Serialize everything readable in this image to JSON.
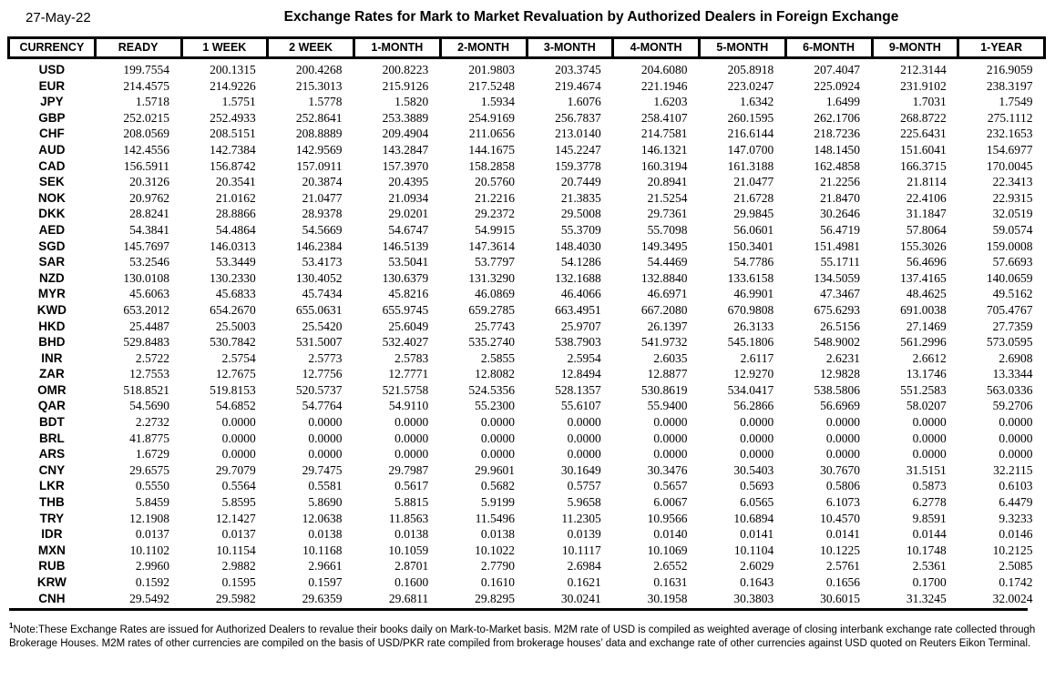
{
  "header": {
    "date": "27-May-22",
    "title": "Exchange Rates for Mark to Market Revaluation by Authorized Dealers in Foreign Exchange"
  },
  "table": {
    "columns": [
      "CURRENCY",
      "READY",
      "1 WEEK",
      "2 WEEK",
      "1-MONTH",
      "2-MONTH",
      "3-MONTH",
      "4-MONTH",
      "5-MONTH",
      "6-MONTH",
      "9-MONTH",
      "1-YEAR"
    ],
    "rows": [
      {
        "currency": "USD",
        "rates": [
          "199.7554",
          "200.1315",
          "200.4268",
          "200.8223",
          "201.9803",
          "203.3745",
          "204.6080",
          "205.8918",
          "207.4047",
          "212.3144",
          "216.9059"
        ]
      },
      {
        "currency": "EUR",
        "rates": [
          "214.4575",
          "214.9226",
          "215.3013",
          "215.9126",
          "217.5248",
          "219.4674",
          "221.1946",
          "223.0247",
          "225.0924",
          "231.9102",
          "238.3197"
        ]
      },
      {
        "currency": "JPY",
        "rates": [
          "1.5718",
          "1.5751",
          "1.5778",
          "1.5820",
          "1.5934",
          "1.6076",
          "1.6203",
          "1.6342",
          "1.6499",
          "1.7031",
          "1.7549"
        ]
      },
      {
        "currency": "GBP",
        "rates": [
          "252.0215",
          "252.4933",
          "252.8641",
          "253.3889",
          "254.9169",
          "256.7837",
          "258.4107",
          "260.1595",
          "262.1706",
          "268.8722",
          "275.1112"
        ]
      },
      {
        "currency": "CHF",
        "rates": [
          "208.0569",
          "208.5151",
          "208.8889",
          "209.4904",
          "211.0656",
          "213.0140",
          "214.7581",
          "216.6144",
          "218.7236",
          "225.6431",
          "232.1653"
        ]
      },
      {
        "currency": "AUD",
        "rates": [
          "142.4556",
          "142.7384",
          "142.9569",
          "143.2847",
          "144.1675",
          "145.2247",
          "146.1321",
          "147.0700",
          "148.1450",
          "151.6041",
          "154.6977"
        ]
      },
      {
        "currency": "CAD",
        "rates": [
          "156.5911",
          "156.8742",
          "157.0911",
          "157.3970",
          "158.2858",
          "159.3778",
          "160.3194",
          "161.3188",
          "162.4858",
          "166.3715",
          "170.0045"
        ]
      },
      {
        "currency": "SEK",
        "rates": [
          "20.3126",
          "20.3541",
          "20.3874",
          "20.4395",
          "20.5760",
          "20.7449",
          "20.8941",
          "21.0477",
          "21.2256",
          "21.8114",
          "22.3413"
        ]
      },
      {
        "currency": "NOK",
        "rates": [
          "20.9762",
          "21.0162",
          "21.0477",
          "21.0934",
          "21.2216",
          "21.3835",
          "21.5254",
          "21.6728",
          "21.8470",
          "22.4106",
          "22.9315"
        ]
      },
      {
        "currency": "DKK",
        "rates": [
          "28.8241",
          "28.8866",
          "28.9378",
          "29.0201",
          "29.2372",
          "29.5008",
          "29.7361",
          "29.9845",
          "30.2646",
          "31.1847",
          "32.0519"
        ]
      },
      {
        "currency": "AED",
        "rates": [
          "54.3841",
          "54.4864",
          "54.5669",
          "54.6747",
          "54.9915",
          "55.3709",
          "55.7098",
          "56.0601",
          "56.4719",
          "57.8064",
          "59.0574"
        ]
      },
      {
        "currency": "SGD",
        "rates": [
          "145.7697",
          "146.0313",
          "146.2384",
          "146.5139",
          "147.3614",
          "148.4030",
          "149.3495",
          "150.3401",
          "151.4981",
          "155.3026",
          "159.0008"
        ]
      },
      {
        "currency": "SAR",
        "rates": [
          "53.2546",
          "53.3449",
          "53.4173",
          "53.5041",
          "53.7797",
          "54.1286",
          "54.4469",
          "54.7786",
          "55.1711",
          "56.4696",
          "57.6693"
        ]
      },
      {
        "currency": "NZD",
        "rates": [
          "130.0108",
          "130.2330",
          "130.4052",
          "130.6379",
          "131.3290",
          "132.1688",
          "132.8840",
          "133.6158",
          "134.5059",
          "137.4165",
          "140.0659"
        ]
      },
      {
        "currency": "MYR",
        "rates": [
          "45.6063",
          "45.6833",
          "45.7434",
          "45.8216",
          "46.0869",
          "46.4066",
          "46.6971",
          "46.9901",
          "47.3467",
          "48.4625",
          "49.5162"
        ]
      },
      {
        "currency": "KWD",
        "rates": [
          "653.2012",
          "654.2670",
          "655.0631",
          "655.9745",
          "659.2785",
          "663.4951",
          "667.2080",
          "670.9808",
          "675.6293",
          "691.0038",
          "705.4767"
        ]
      },
      {
        "currency": "HKD",
        "rates": [
          "25.4487",
          "25.5003",
          "25.5420",
          "25.6049",
          "25.7743",
          "25.9707",
          "26.1397",
          "26.3133",
          "26.5156",
          "27.1469",
          "27.7359"
        ]
      },
      {
        "currency": "BHD",
        "rates": [
          "529.8483",
          "530.7842",
          "531.5007",
          "532.4027",
          "535.2740",
          "538.7903",
          "541.9732",
          "545.1806",
          "548.9002",
          "561.2996",
          "573.0595"
        ]
      },
      {
        "currency": "INR",
        "rates": [
          "2.5722",
          "2.5754",
          "2.5773",
          "2.5783",
          "2.5855",
          "2.5954",
          "2.6035",
          "2.6117",
          "2.6231",
          "2.6612",
          "2.6908"
        ]
      },
      {
        "currency": "ZAR",
        "rates": [
          "12.7553",
          "12.7675",
          "12.7756",
          "12.7771",
          "12.8082",
          "12.8494",
          "12.8877",
          "12.9270",
          "12.9828",
          "13.1746",
          "13.3344"
        ]
      },
      {
        "currency": "OMR",
        "rates": [
          "518.8521",
          "519.8153",
          "520.5737",
          "521.5758",
          "524.5356",
          "528.1357",
          "530.8619",
          "534.0417",
          "538.5806",
          "551.2583",
          "563.0336"
        ]
      },
      {
        "currency": "QAR",
        "rates": [
          "54.5690",
          "54.6852",
          "54.7764",
          "54.9110",
          "55.2300",
          "55.6107",
          "55.9400",
          "56.2866",
          "56.6969",
          "58.0207",
          "59.2706"
        ]
      },
      {
        "currency": "BDT",
        "rates": [
          "2.2732",
          "0.0000",
          "0.0000",
          "0.0000",
          "0.0000",
          "0.0000",
          "0.0000",
          "0.0000",
          "0.0000",
          "0.0000",
          "0.0000"
        ]
      },
      {
        "currency": "BRL",
        "rates": [
          "41.8775",
          "0.0000",
          "0.0000",
          "0.0000",
          "0.0000",
          "0.0000",
          "0.0000",
          "0.0000",
          "0.0000",
          "0.0000",
          "0.0000"
        ]
      },
      {
        "currency": "ARS",
        "rates": [
          "1.6729",
          "0.0000",
          "0.0000",
          "0.0000",
          "0.0000",
          "0.0000",
          "0.0000",
          "0.0000",
          "0.0000",
          "0.0000",
          "0.0000"
        ]
      },
      {
        "currency": "CNY",
        "rates": [
          "29.6575",
          "29.7079",
          "29.7475",
          "29.7987",
          "29.9601",
          "30.1649",
          "30.3476",
          "30.5403",
          "30.7670",
          "31.5151",
          "32.2115"
        ]
      },
      {
        "currency": "LKR",
        "rates": [
          "0.5550",
          "0.5564",
          "0.5581",
          "0.5617",
          "0.5682",
          "0.5757",
          "0.5657",
          "0.5693",
          "0.5806",
          "0.5873",
          "0.6103"
        ]
      },
      {
        "currency": "THB",
        "rates": [
          "5.8459",
          "5.8595",
          "5.8690",
          "5.8815",
          "5.9199",
          "5.9658",
          "6.0067",
          "6.0565",
          "6.1073",
          "6.2778",
          "6.4479"
        ]
      },
      {
        "currency": "TRY",
        "rates": [
          "12.1908",
          "12.1427",
          "12.0638",
          "11.8563",
          "11.5496",
          "11.2305",
          "10.9566",
          "10.6894",
          "10.4570",
          "9.8591",
          "9.3233"
        ]
      },
      {
        "currency": "IDR",
        "rates": [
          "0.0137",
          "0.0137",
          "0.0138",
          "0.0138",
          "0.0138",
          "0.0139",
          "0.0140",
          "0.0141",
          "0.0141",
          "0.0144",
          "0.0146"
        ]
      },
      {
        "currency": "MXN",
        "rates": [
          "10.1102",
          "10.1154",
          "10.1168",
          "10.1059",
          "10.1022",
          "10.1117",
          "10.1069",
          "10.1104",
          "10.1225",
          "10.1748",
          "10.2125"
        ]
      },
      {
        "currency": "RUB",
        "rates": [
          "2.9960",
          "2.9882",
          "2.9661",
          "2.8701",
          "2.7790",
          "2.6984",
          "2.6552",
          "2.6029",
          "2.5761",
          "2.5361",
          "2.5085"
        ]
      },
      {
        "currency": "KRW",
        "rates": [
          "0.1592",
          "0.1595",
          "0.1597",
          "0.1600",
          "0.1610",
          "0.1621",
          "0.1631",
          "0.1643",
          "0.1656",
          "0.1700",
          "0.1742"
        ]
      },
      {
        "currency": "CNH",
        "rates": [
          "29.5492",
          "29.5982",
          "29.6359",
          "29.6811",
          "29.8295",
          "30.0241",
          "30.1958",
          "30.3803",
          "30.6015",
          "31.3245",
          "32.0024"
        ]
      }
    ]
  },
  "footnote": {
    "marker": "1",
    "text": "Note:These Exchange Rates are issued for Authorized Dealers to revalue their books daily on Mark-to-Market basis. M2M rate of USD is compiled as weighted average of closing interbank exchange rate collected through Brokerage Houses. M2M rates of other currencies are compiled on the basis of USD/PKR rate compiled from brokerage houses’ data and exchange rate of other currencies against USD quoted on Reuters Eikon Terminal."
  },
  "colors": {
    "text": "#000000",
    "background": "#ffffff",
    "border": "#000000"
  }
}
